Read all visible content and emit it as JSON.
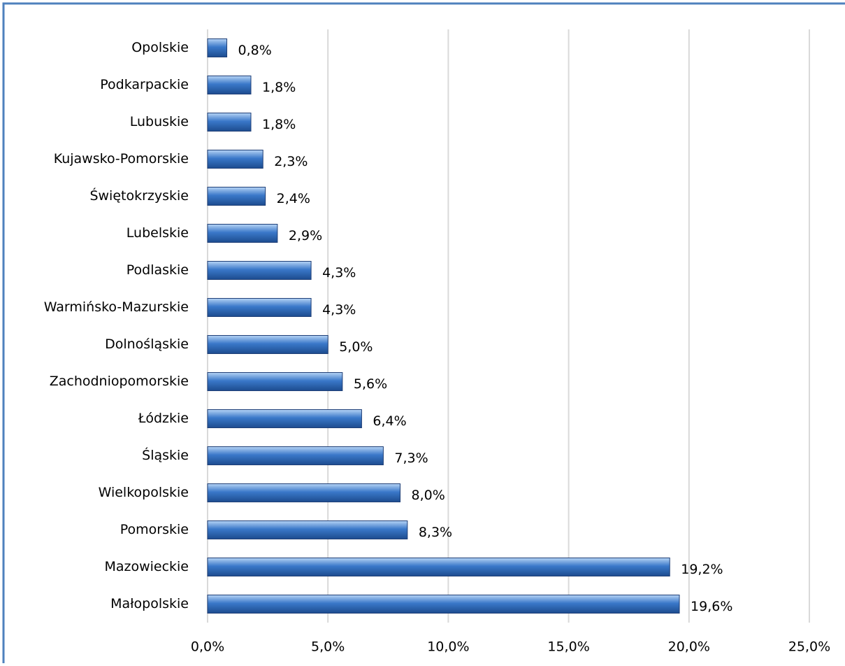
{
  "chart_data": {
    "type": "barh",
    "categories": [
      "Opolskie",
      "Podkarpackie",
      "Lubuskie",
      "Kujawsko-Pomorskie",
      "Świętokrzyskie",
      "Lubelskie",
      "Podlaskie",
      "Warmińsko-Mazurskie",
      "Dolnośląskie",
      "Zachodniopomorskie",
      "Łódzkie",
      "Śląskie",
      "Wielkopolskie",
      "Pomorskie",
      "Mazowieckie",
      "Małopolskie"
    ],
    "values": [
      0.8,
      1.8,
      1.8,
      2.3,
      2.4,
      2.9,
      4.3,
      4.3,
      5.0,
      5.6,
      6.4,
      7.3,
      8.0,
      8.3,
      19.2,
      19.6
    ],
    "value_labels": [
      "0,8%",
      "1,8%",
      "1,8%",
      "2,3%",
      "2,4%",
      "2,9%",
      "4,3%",
      "4,3%",
      "5,0%",
      "5,6%",
      "6,4%",
      "7,3%",
      "8,0%",
      "8,3%",
      "19,2%",
      "19,6%"
    ],
    "color": "#3a78c9",
    "xlim": [
      0,
      25
    ],
    "xticks": [
      {
        "value": 0,
        "label": "0,0%"
      },
      {
        "value": 5,
        "label": "5,0%"
      },
      {
        "value": 10,
        "label": "10,0%"
      },
      {
        "value": 15,
        "label": "15,0%"
      },
      {
        "value": 20,
        "label": "20,0%"
      },
      {
        "value": 25,
        "label": "25,0%"
      }
    ],
    "grid": true
  }
}
